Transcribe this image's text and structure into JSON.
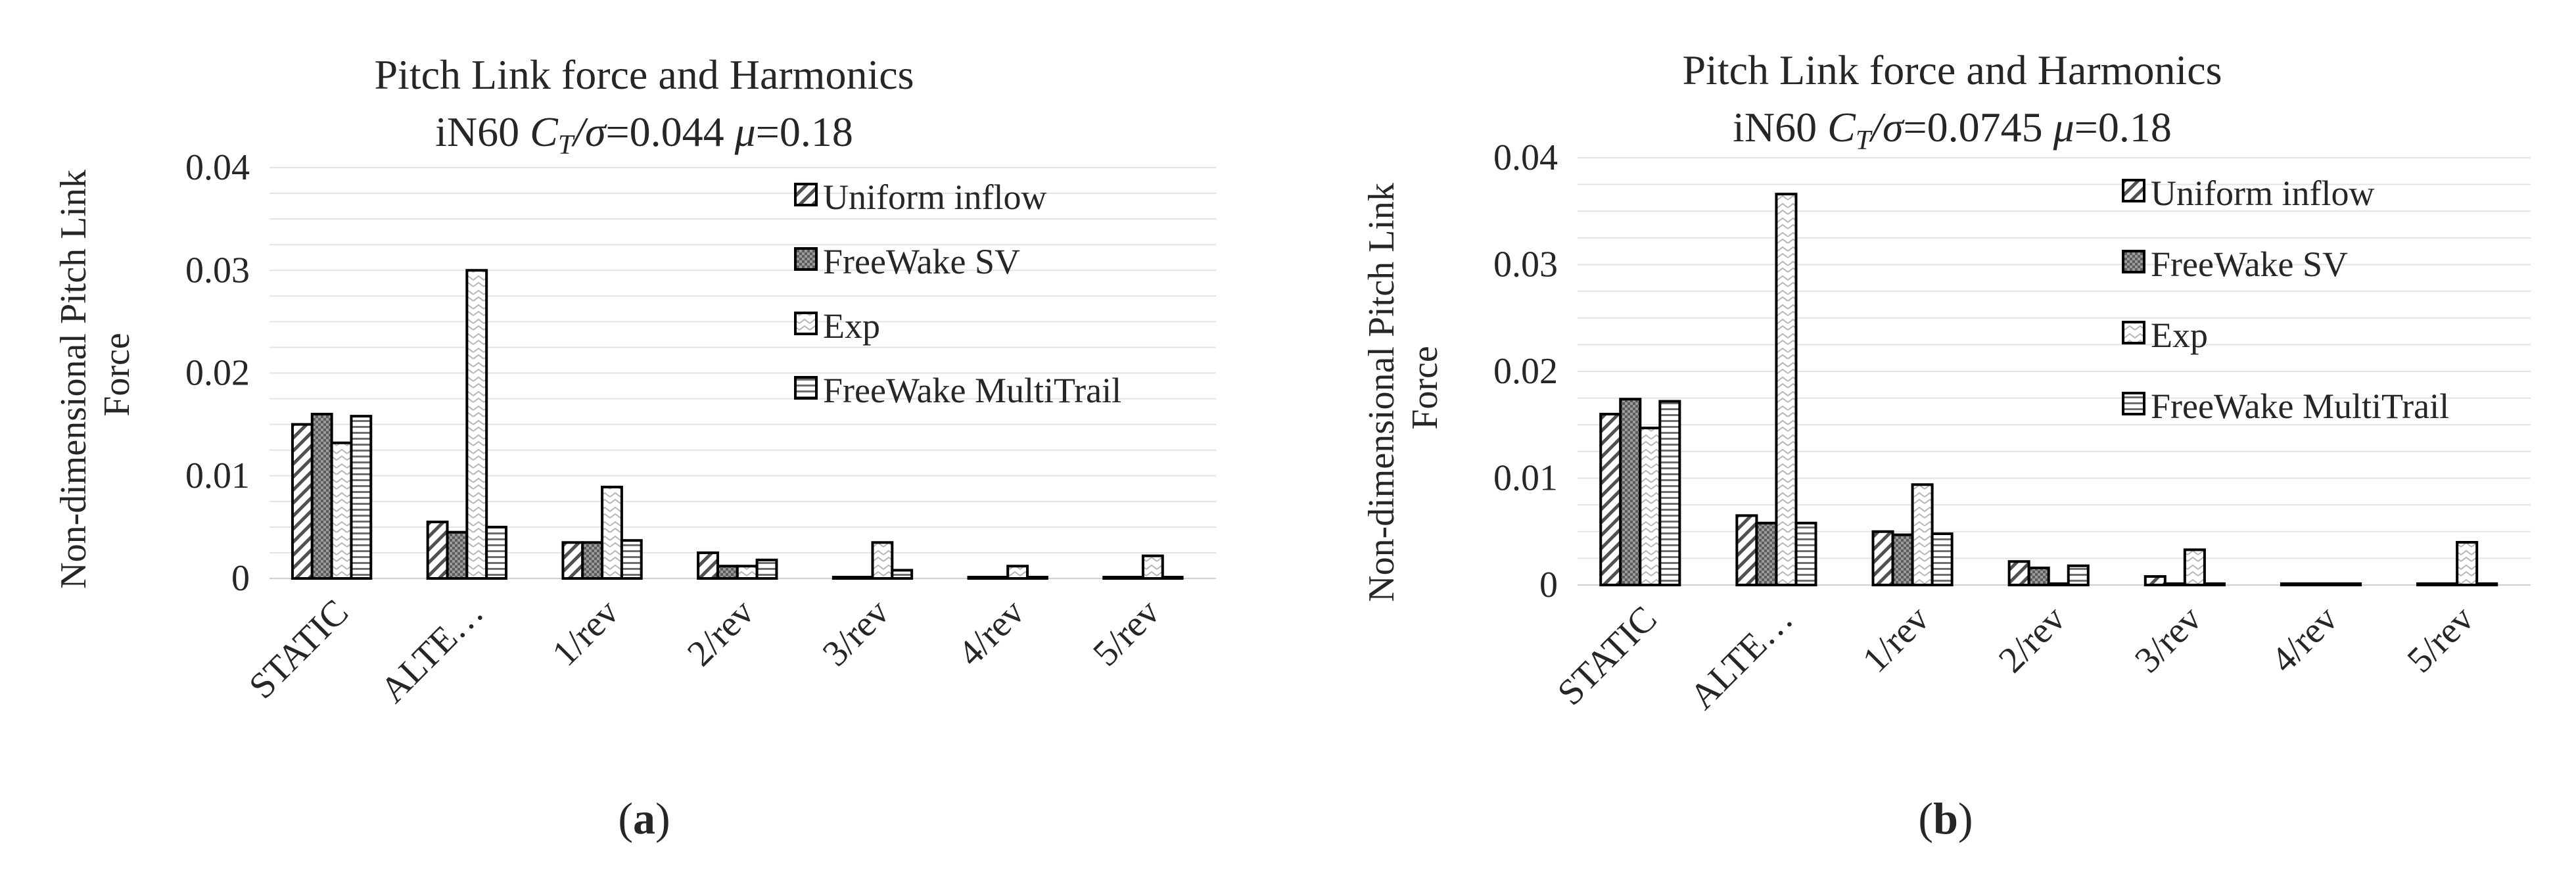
{
  "chart_data": [
    {
      "type": "bar",
      "panel_label": "a",
      "title": "Pitch Link force and Harmonics",
      "subtitle": {
        "prefix": "iN60 ",
        "ct": "C",
        "ct_sub": "T",
        "sep": "/",
        "sigma": "σ",
        "eq1": "=0.044 ",
        "mu": "μ",
        "eq2": "=0.18"
      },
      "ylabel_line1": "Non-dimensional Pitch Link",
      "ylabel_line2": "Force",
      "yticks": [
        "0",
        "0.01",
        "0.02",
        "0.03",
        "0.04"
      ],
      "ylim": [
        0,
        0.04
      ],
      "categories": [
        "STATIC",
        "ALTE…",
        "1/rev",
        "2/rev",
        "3/rev",
        "4/rev",
        "5/rev"
      ],
      "legend": [
        "Uniform inflow",
        "FreeWake SV",
        "Exp",
        "FreeWake MultiTrail"
      ],
      "series": [
        {
          "name": "Uniform inflow",
          "values": [
            0.015,
            0.0055,
            0.0035,
            0.0025,
            0.0001,
            0.0001,
            0.0001
          ]
        },
        {
          "name": "FreeWake SV",
          "values": [
            0.016,
            0.0045,
            0.0035,
            0.0012,
            0.0001,
            0.0001,
            0.0001
          ]
        },
        {
          "name": "Exp",
          "values": [
            0.0132,
            0.03,
            0.0089,
            0.0012,
            0.0035,
            0.0012,
            0.0022
          ]
        },
        {
          "name": "FreeWake MultiTrail",
          "values": [
            0.0158,
            0.005,
            0.0037,
            0.0018,
            0.0008,
            0.0001,
            0.0001
          ]
        }
      ]
    },
    {
      "type": "bar",
      "panel_label": "b",
      "title": "Pitch Link force and Harmonics",
      "subtitle": {
        "prefix": "iN60 ",
        "ct": "C",
        "ct_sub": "T",
        "sep": "/",
        "sigma": "σ",
        "eq1": "=0.0745 ",
        "mu": "μ",
        "eq2": "=0.18"
      },
      "ylabel_line1": "Non-dimensional Pitch Link",
      "ylabel_line2": "Force",
      "yticks": [
        "0",
        "0.01",
        "0.02",
        "0.03",
        "0.04"
      ],
      "ylim": [
        0,
        0.04
      ],
      "categories": [
        "STATIC",
        "ALTE…",
        "1/rev",
        "2/rev",
        "3/rev",
        "4/rev",
        "5/rev"
      ],
      "legend": [
        "Uniform inflow",
        "FreeWake SV",
        "Exp",
        "FreeWake MultiTrail"
      ],
      "series": [
        {
          "name": "Uniform inflow",
          "values": [
            0.016,
            0.0065,
            0.005,
            0.0022,
            0.0008,
            0.0001,
            0.0001
          ]
        },
        {
          "name": "FreeWake SV",
          "values": [
            0.0174,
            0.0058,
            0.0047,
            0.0016,
            0.0001,
            0.0001,
            0.0001
          ]
        },
        {
          "name": "Exp",
          "values": [
            0.0147,
            0.0366,
            0.0094,
            0.0001,
            0.0033,
            0.0001,
            0.004
          ]
        },
        {
          "name": "FreeWake MultiTrail",
          "values": [
            0.0172,
            0.0058,
            0.0048,
            0.0018,
            0.0001,
            0.0001,
            0.0001
          ]
        }
      ]
    }
  ]
}
